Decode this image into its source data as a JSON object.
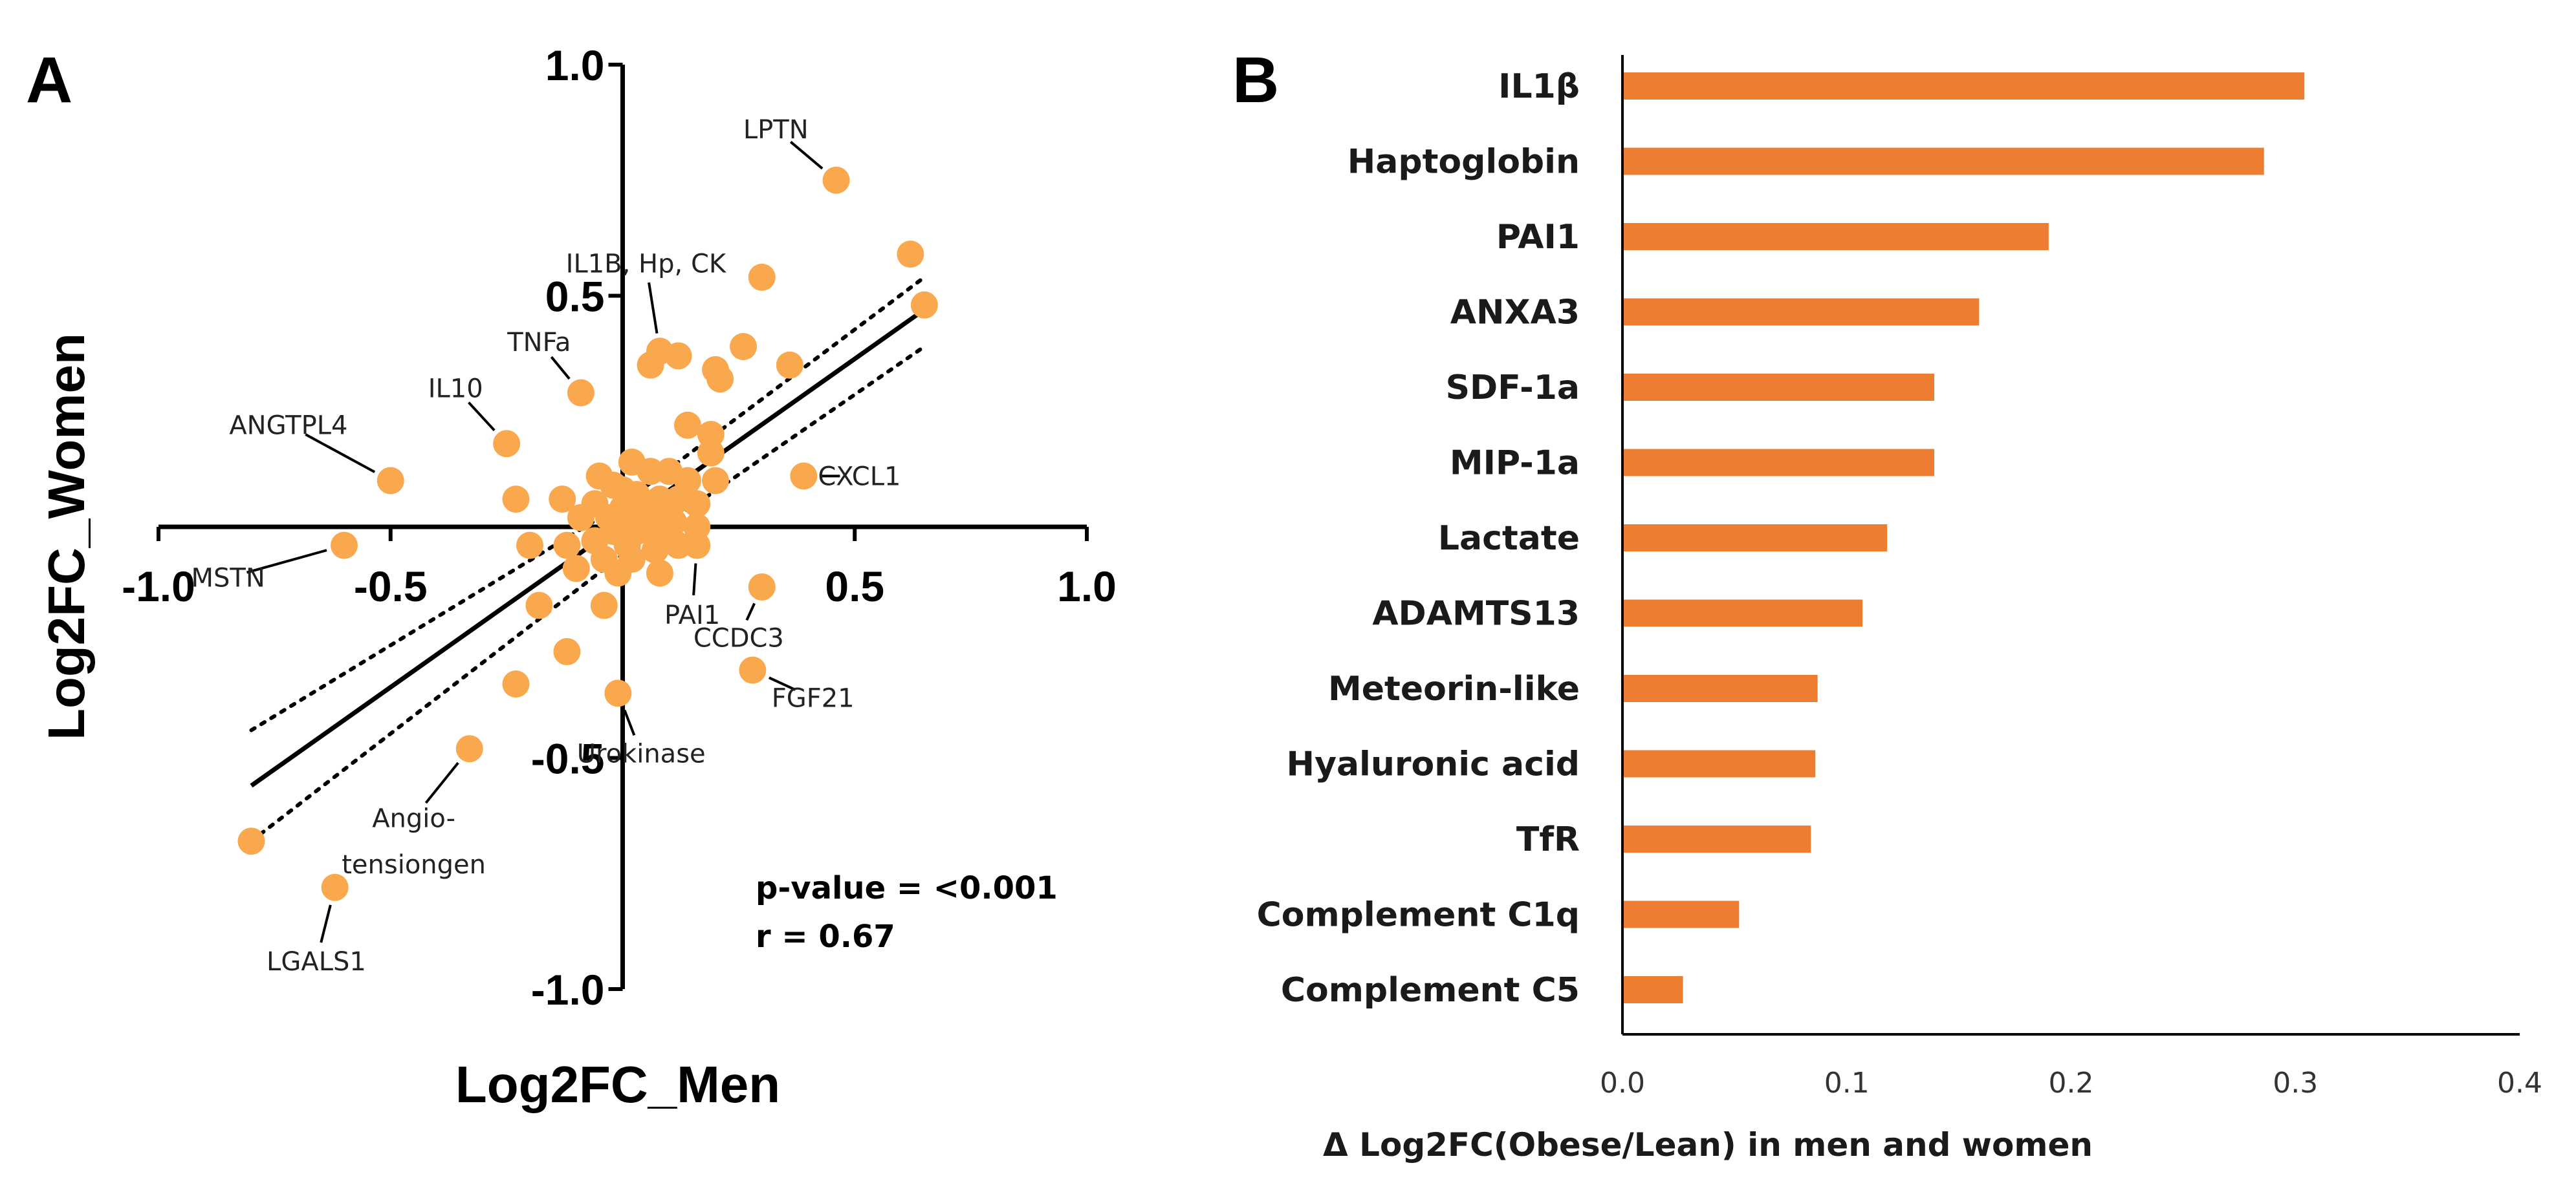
{
  "chart_data": [
    {
      "panel": "A",
      "type": "scatter",
      "xlabel": "Log2FC_Men",
      "ylabel": "Log2FC_Women",
      "xlim": [
        -1.0,
        1.0
      ],
      "ylim": [
        -1.0,
        1.0
      ],
      "x_ticks": [
        "-1.0",
        "-0.5",
        "0.5",
        "1.0"
      ],
      "x_tick_values": [
        -1.0,
        -0.5,
        0.5,
        1.0
      ],
      "y_ticks": [
        "1.0",
        "0.5",
        "-0.5",
        "-1.0"
      ],
      "y_tick_values": [
        1.0,
        0.5,
        -0.5,
        -1.0
      ],
      "points": [
        {
          "x": 0.46,
          "y": 0.75
        },
        {
          "x": 0.62,
          "y": 0.59
        },
        {
          "x": 0.65,
          "y": 0.48
        },
        {
          "x": 0.3,
          "y": 0.54
        },
        {
          "x": 0.08,
          "y": 0.38
        },
        {
          "x": 0.12,
          "y": 0.37
        },
        {
          "x": 0.06,
          "y": 0.35
        },
        {
          "x": 0.26,
          "y": 0.39
        },
        {
          "x": 0.36,
          "y": 0.35
        },
        {
          "x": 0.2,
          "y": 0.34
        },
        {
          "x": 0.21,
          "y": 0.32
        },
        {
          "x": -0.09,
          "y": 0.29
        },
        {
          "x": 0.14,
          "y": 0.22
        },
        {
          "x": 0.19,
          "y": 0.2
        },
        {
          "x": -0.25,
          "y": 0.18
        },
        {
          "x": 0.19,
          "y": 0.16
        },
        {
          "x": 0.39,
          "y": 0.11
        },
        {
          "x": 0.02,
          "y": 0.14
        },
        {
          "x": 0.06,
          "y": 0.12
        },
        {
          "x": 0.1,
          "y": 0.12
        },
        {
          "x": 0.14,
          "y": 0.1
        },
        {
          "x": 0.2,
          "y": 0.1
        },
        {
          "x": -0.05,
          "y": 0.11
        },
        {
          "x": -0.5,
          "y": 0.1
        },
        {
          "x": -0.02,
          "y": 0.09
        },
        {
          "x": 0.0,
          "y": 0.08
        },
        {
          "x": 0.03,
          "y": 0.07
        },
        {
          "x": 0.08,
          "y": 0.06
        },
        {
          "x": 0.12,
          "y": 0.06
        },
        {
          "x": 0.16,
          "y": 0.05
        },
        {
          "x": -0.23,
          "y": 0.06
        },
        {
          "x": -0.13,
          "y": 0.06
        },
        {
          "x": -0.06,
          "y": 0.05
        },
        {
          "x": 0.0,
          "y": 0.04
        },
        {
          "x": 0.05,
          "y": 0.04
        },
        {
          "x": 0.09,
          "y": 0.03
        },
        {
          "x": -0.09,
          "y": 0.02
        },
        {
          "x": -0.03,
          "y": 0.02
        },
        {
          "x": 0.02,
          "y": 0.01
        },
        {
          "x": 0.06,
          "y": 0.01
        },
        {
          "x": 0.11,
          "y": 0.01
        },
        {
          "x": 0.16,
          "y": 0.0
        },
        {
          "x": -0.02,
          "y": -0.01
        },
        {
          "x": 0.03,
          "y": -0.01
        },
        {
          "x": 0.08,
          "y": -0.02
        },
        {
          "x": -0.2,
          "y": -0.04
        },
        {
          "x": -0.12,
          "y": -0.04
        },
        {
          "x": -0.06,
          "y": -0.03
        },
        {
          "x": 0.01,
          "y": -0.04
        },
        {
          "x": 0.07,
          "y": -0.05
        },
        {
          "x": 0.12,
          "y": -0.04
        },
        {
          "x": 0.16,
          "y": -0.04
        },
        {
          "x": -0.6,
          "y": -0.04
        },
        {
          "x": -0.04,
          "y": -0.07
        },
        {
          "x": 0.02,
          "y": -0.07
        },
        {
          "x": -0.1,
          "y": -0.09
        },
        {
          "x": -0.01,
          "y": -0.1
        },
        {
          "x": 0.08,
          "y": -0.1
        },
        {
          "x": 0.3,
          "y": -0.13
        },
        {
          "x": -0.18,
          "y": -0.17
        },
        {
          "x": -0.04,
          "y": -0.17
        },
        {
          "x": -0.12,
          "y": -0.27
        },
        {
          "x": 0.28,
          "y": -0.31
        },
        {
          "x": -0.23,
          "y": -0.34
        },
        {
          "x": -0.01,
          "y": -0.36
        },
        {
          "x": -0.33,
          "y": -0.48
        },
        {
          "x": -0.8,
          "y": -0.68
        },
        {
          "x": -0.62,
          "y": -0.78
        }
      ],
      "regression": {
        "x1": -0.8,
        "y1": -0.56,
        "x2": 0.65,
        "y2": 0.47
      },
      "confidence_upper": [
        [
          -0.8,
          -0.44
        ],
        [
          0.0,
          0.05
        ],
        [
          0.65,
          0.54
        ]
      ],
      "confidence_lower": [
        [
          -0.8,
          -0.68
        ],
        [
          0.0,
          -0.06
        ],
        [
          0.65,
          0.39
        ]
      ],
      "annotations": [
        {
          "label": "LPTN",
          "point_x": 0.46,
          "point_y": 0.75,
          "text_x": 0.33,
          "text_y": 0.86,
          "line": true
        },
        {
          "label": "IL1B, Hp, CK",
          "point_x": 0.08,
          "point_y": 0.38,
          "text_x": 0.05,
          "text_y": 0.57,
          "line": true
        },
        {
          "label": "TNFa",
          "point_x": -0.09,
          "point_y": 0.29,
          "text_x": -0.18,
          "text_y": 0.4,
          "line": true
        },
        {
          "label": "IL10",
          "point_x": -0.25,
          "point_y": 0.18,
          "text_x": -0.36,
          "text_y": 0.3,
          "line": true
        },
        {
          "label": "ANGTPL4",
          "point_x": -0.5,
          "point_y": 0.1,
          "text_x": -0.72,
          "text_y": 0.22,
          "line": true
        },
        {
          "label": "CXCL1",
          "point_x": 0.39,
          "point_y": 0.11,
          "text_x": 0.51,
          "text_y": 0.11,
          "line": true
        },
        {
          "label": "MSTN",
          "point_x": -0.6,
          "point_y": -0.04,
          "text_x": -0.85,
          "text_y": -0.11,
          "line": true
        },
        {
          "label": "PAI1",
          "point_x": 0.16,
          "point_y": -0.04,
          "text_x": 0.15,
          "text_y": -0.19,
          "line": true
        },
        {
          "label": "CCDC3",
          "point_x": 0.3,
          "point_y": -0.13,
          "text_x": 0.25,
          "text_y": -0.24,
          "line": true
        },
        {
          "label": "FGF21",
          "point_x": 0.28,
          "point_y": -0.31,
          "text_x": 0.41,
          "text_y": -0.37,
          "line": true
        },
        {
          "label": "Urokinase",
          "point_x": -0.01,
          "point_y": -0.36,
          "text_x": 0.04,
          "text_y": -0.49,
          "line": true
        },
        {
          "label": "Angio-",
          "point_x": -0.33,
          "point_y": -0.48,
          "text_x": -0.45,
          "text_y": -0.63,
          "line": true
        },
        {
          "label": "tensiongen",
          "text_x": -0.45,
          "text_y": -0.73,
          "line": false
        },
        {
          "label": "LGALS1",
          "point_x": -0.62,
          "point_y": -0.78,
          "text_x": -0.66,
          "text_y": -0.94,
          "line": true
        }
      ],
      "stats": {
        "p_value": "p-value = <0.001",
        "r": "r = 0.67"
      },
      "color": "#f9a84d"
    },
    {
      "panel": "B",
      "type": "bar",
      "orientation": "horizontal",
      "categories": [
        "IL1β",
        "Haptoglobin",
        "PAI1",
        "ANXA3",
        "SDF-1a",
        "MIP-1a",
        "Lactate",
        "ADAMTS13",
        "Meteorin-like",
        "Hyaluronic acid",
        "TfR",
        "Complement C1q",
        "Complement C5"
      ],
      "values": [
        0.304,
        0.286,
        0.19,
        0.159,
        0.139,
        0.139,
        0.118,
        0.107,
        0.087,
        0.086,
        0.084,
        0.052,
        0.027
      ],
      "xlim": [
        0.0,
        0.4
      ],
      "x_ticks": [
        "0.0",
        "0.1",
        "0.2",
        "0.3",
        "0.4"
      ],
      "x_tick_values": [
        0.0,
        0.1,
        0.2,
        0.3,
        0.4
      ],
      "xlabel": "Δ Log2FC(Obese/Lean) in men and women",
      "color": "#ed7d31"
    }
  ],
  "panel_labels": {
    "a": "A",
    "b": "B"
  }
}
